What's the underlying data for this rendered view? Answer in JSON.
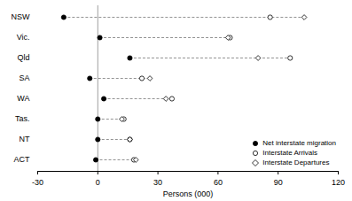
{
  "chart_data": {
    "type": "dot",
    "categories": [
      "NSW",
      "Vic.",
      "Qld",
      "SA",
      "WA",
      "Tas.",
      "NT",
      "ACT"
    ],
    "series": [
      {
        "name": "Net interstate migration",
        "color": "#000000",
        "marker": "circle",
        "values": [
          -17,
          1,
          16,
          -4,
          3,
          0,
          0,
          -1
        ]
      },
      {
        "name": "Interstate Arrivals",
        "color": "#000000",
        "marker": "open circle",
        "values": [
          86,
          66,
          96,
          22,
          37,
          13,
          16,
          18
        ]
      },
      {
        "name": "Interstate Departures",
        "color": "#000000",
        "marker": "open diamond",
        "values": [
          103,
          65,
          80,
          26,
          34,
          12,
          16,
          19
        ]
      }
    ],
    "orientation": "horizontal",
    "xlabel": "Persons (000)",
    "xlim": [
      -30,
      120
    ],
    "xticks": [
      -30,
      0,
      30,
      60,
      90,
      120
    ],
    "legend": "lower right",
    "grid": false
  }
}
